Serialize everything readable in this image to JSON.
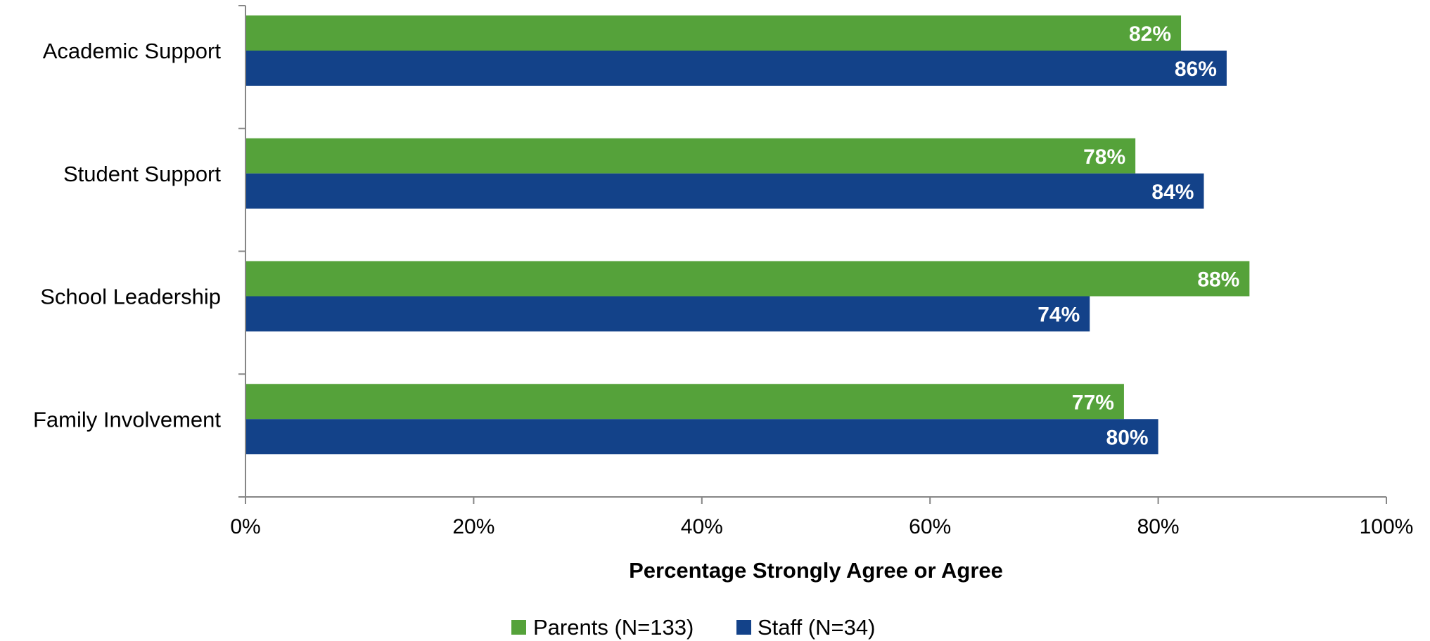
{
  "chart_data": {
    "type": "bar",
    "orientation": "horizontal",
    "categories": [
      "Academic Support",
      "Student Support",
      "School Leadership",
      "Family Involvement"
    ],
    "series": [
      {
        "name": "Parents (N=133)",
        "color": "#55a23a",
        "values": [
          82,
          78,
          88,
          77
        ]
      },
      {
        "name": "Staff (N=34)",
        "color": "#134289",
        "values": [
          86,
          84,
          74,
          80
        ]
      }
    ],
    "data_labels": [
      [
        "82%",
        "78%",
        "88%",
        "77%"
      ],
      [
        "86%",
        "84%",
        "74%",
        "80%"
      ]
    ],
    "xlabel": "Percentage Strongly Agree or Agree",
    "ylabel": "",
    "xlim": [
      0,
      100
    ],
    "x_ticks": [
      0,
      20,
      40,
      60,
      80,
      100
    ],
    "x_tick_labels": [
      "0%",
      "20%",
      "40%",
      "60%",
      "80%",
      "100%"
    ],
    "grid": false,
    "legend_position": "bottom"
  }
}
